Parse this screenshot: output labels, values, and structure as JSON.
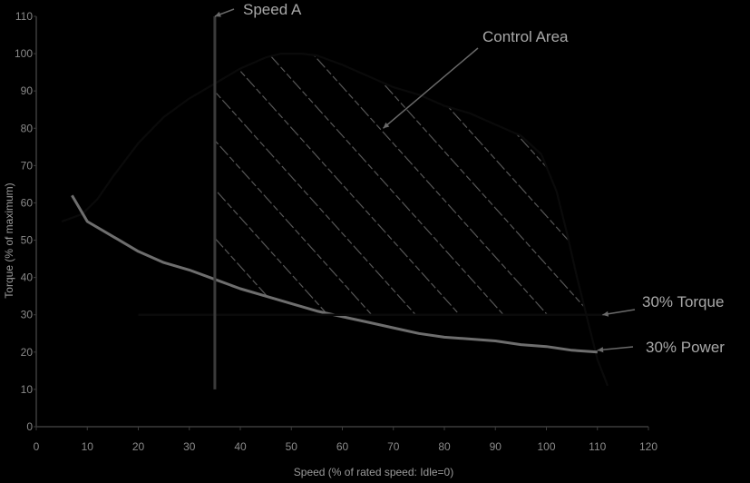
{
  "chart_data": {
    "type": "line",
    "xlabel": "Speed (% of rated speed: Idle=0)",
    "ylabel": "Torque (% of maximum)",
    "xlim": [
      0,
      120
    ],
    "ylim": [
      0,
      110
    ],
    "x_ticks": [
      "0",
      "10",
      "20",
      "30",
      "40",
      "50",
      "60",
      "70",
      "80",
      "90",
      "100",
      "110",
      "120"
    ],
    "y_ticks": [
      "0",
      "10",
      "20",
      "30",
      "40",
      "50",
      "60",
      "70",
      "80",
      "90",
      "100",
      "110"
    ],
    "series": [
      {
        "key": "torque",
        "color": "#0a0a0a",
        "x": [
          5,
          9,
          12,
          15,
          20,
          25,
          30,
          35,
          40,
          45,
          48,
          52,
          55,
          60,
          65,
          70,
          75,
          80,
          85,
          90,
          95,
          99,
          102,
          104,
          106,
          108,
          110,
          112
        ],
        "y": [
          55,
          57,
          61,
          67,
          76,
          83,
          88,
          92,
          96,
          99,
          100,
          100,
          99.5,
          97,
          94,
          91,
          89,
          86,
          84,
          81,
          78,
          73,
          63,
          52,
          40,
          29,
          18,
          11
        ]
      },
      {
        "key": "power",
        "color": "#6e6e6e",
        "x": [
          7,
          10,
          15,
          20,
          25,
          30,
          35,
          40,
          45,
          50,
          55,
          60,
          65,
          70,
          75,
          80,
          85,
          90,
          95,
          100,
          105,
          110
        ],
        "y": [
          62,
          55,
          51,
          47,
          44,
          42,
          39.5,
          37,
          35,
          33,
          31,
          29.5,
          28,
          26.5,
          25,
          24,
          23.5,
          23,
          22,
          21.5,
          20.5,
          20
        ]
      },
      {
        "key": "torque_limit",
        "color": "#0a0a0a",
        "x": [
          20,
          111
        ],
        "y": [
          30,
          30
        ]
      },
      {
        "key": "speed_a",
        "color": "#3a3a3a",
        "x": [
          35,
          35
        ],
        "y": [
          10,
          110
        ]
      }
    ],
    "annotations": [
      {
        "key": "speed_a",
        "text": "Speed A",
        "target": [
          35,
          110
        ]
      },
      {
        "key": "control_area",
        "text": "Control Area",
        "target": [
          68,
          80
        ]
      },
      {
        "key": "torque_30",
        "text": "30% Torque",
        "target": [
          111,
          30
        ]
      },
      {
        "key": "power_30",
        "text": "30% Power",
        "target": [
          110,
          20.5
        ]
      }
    ],
    "shaded_region": {
      "label": "Control Area",
      "x_from": 35
    }
  }
}
